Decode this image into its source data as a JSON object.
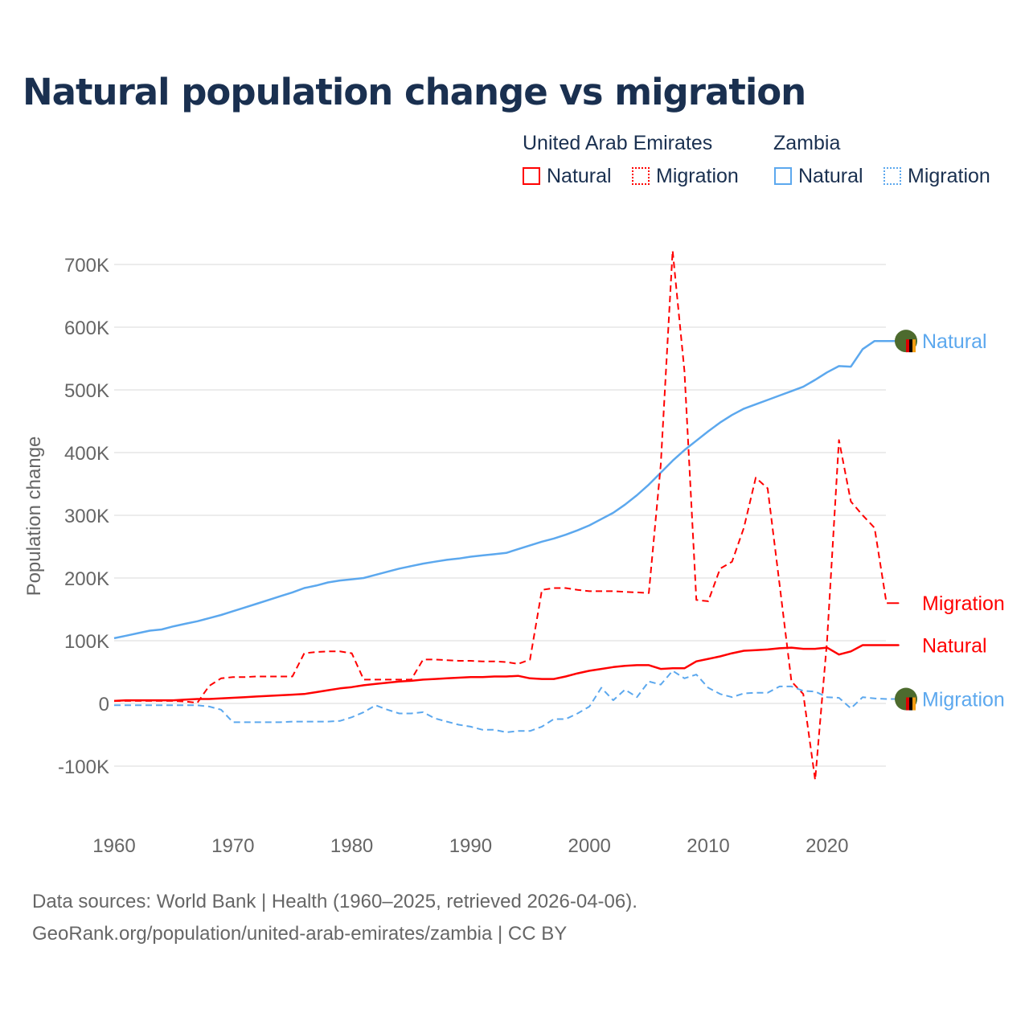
{
  "title": "Natural population change vs migration",
  "legend": {
    "group1": "United Arab Emirates",
    "group2": "Zambia",
    "natural": "Natural",
    "migration": "Migration"
  },
  "source_line1": "Data sources: World Bank | Health (1960–2025, retrieved 2026-04-06).",
  "source_line2": "GeoRank.org/population/united-arab-emirates/zambia | CC BY",
  "colors": {
    "uae": "#ff0000",
    "zambia": "#5ca8ee",
    "title": "#1a3050"
  },
  "chart_data": {
    "type": "line",
    "ylabel": "Population change",
    "ylim": [
      -150000,
      740000
    ],
    "xlim": [
      1960,
      2025
    ],
    "x_ticks": [
      1960,
      1970,
      1980,
      1990,
      2000,
      2010,
      2020
    ],
    "y_ticks": [
      {
        "v": -100000,
        "l": "-100K"
      },
      {
        "v": 0,
        "l": "0"
      },
      {
        "v": 100000,
        "l": "100K"
      },
      {
        "v": 200000,
        "l": "200K"
      },
      {
        "v": 300000,
        "l": "300K"
      },
      {
        "v": 400000,
        "l": "400K"
      },
      {
        "v": 500000,
        "l": "500K"
      },
      {
        "v": 600000,
        "l": "600K"
      },
      {
        "v": 700000,
        "l": "700K"
      }
    ],
    "x_start": 1960,
    "series": [
      {
        "name": "Zambia Natural",
        "label": "Natural",
        "country": "zambia",
        "dash": false,
        "values": [
          104,
          108,
          112,
          116,
          118,
          123,
          127,
          131,
          136,
          141,
          147,
          153,
          159,
          165,
          171,
          177,
          184,
          188,
          193,
          196,
          198,
          200,
          205,
          210,
          215,
          219,
          223,
          226,
          229,
          231,
          234,
          236,
          238,
          240,
          246,
          252,
          258,
          263,
          269,
          276,
          284,
          294,
          304,
          317,
          332,
          349,
          368,
          387,
          404,
          419,
          434,
          448,
          460,
          470,
          477,
          484,
          491,
          498,
          505,
          516,
          528,
          538,
          537,
          565,
          578,
          578,
          578
        ]
      },
      {
        "name": "UAE Migration",
        "label": "Migration",
        "country": "uae",
        "dash": true,
        "values": [
          4,
          4,
          4,
          4,
          4,
          4,
          3,
          1,
          28,
          40,
          42,
          42,
          43,
          43,
          43,
          43,
          80,
          82,
          83,
          83,
          80,
          38,
          38,
          38,
          38,
          38,
          70,
          70,
          69,
          68,
          68,
          67,
          67,
          66,
          63,
          70,
          181,
          184,
          184,
          181,
          179,
          179,
          179,
          178,
          177,
          176,
          380,
          722,
          530,
          165,
          163,
          215,
          226,
          280,
          360,
          343,
          190,
          35,
          15,
          -122,
          100,
          420,
          322,
          300,
          280,
          160,
          160
        ]
      },
      {
        "name": "UAE Natural",
        "label": "Natural",
        "country": "uae",
        "dash": false,
        "values": [
          4,
          5,
          5,
          5,
          5,
          5,
          6,
          7,
          7,
          8,
          9,
          10,
          11,
          12,
          13,
          14,
          15,
          18,
          21,
          24,
          26,
          29,
          31,
          33,
          35,
          36,
          38,
          39,
          40,
          41,
          42,
          42,
          43,
          43,
          44,
          40,
          39,
          39,
          43,
          48,
          52,
          55,
          58,
          60,
          61,
          61,
          55,
          56,
          56,
          67,
          71,
          75,
          80,
          84,
          85,
          86,
          88,
          89,
          87,
          87,
          89,
          78,
          83,
          93,
          93,
          93,
          93
        ]
      },
      {
        "name": "Zambia Migration",
        "label": "Migration",
        "country": "zambia",
        "dash": true,
        "values": [
          -3,
          -3,
          -3,
          -3,
          -3,
          -3,
          -3,
          -3,
          -5,
          -10,
          -30,
          -30,
          -30,
          -30,
          -30,
          -29,
          -29,
          -29,
          -29,
          -28,
          -22,
          -14,
          -3,
          -10,
          -16,
          -16,
          -14,
          -24,
          -29,
          -34,
          -37,
          -42,
          -42,
          -46,
          -44,
          -44,
          -37,
          -25,
          -25,
          -16,
          -5,
          25,
          5,
          22,
          10,
          35,
          30,
          52,
          40,
          46,
          25,
          15,
          10,
          16,
          17,
          17,
          27,
          27,
          20,
          19,
          10,
          9,
          -8,
          10,
          8,
          7,
          7
        ]
      }
    ],
    "units": "thousands"
  }
}
